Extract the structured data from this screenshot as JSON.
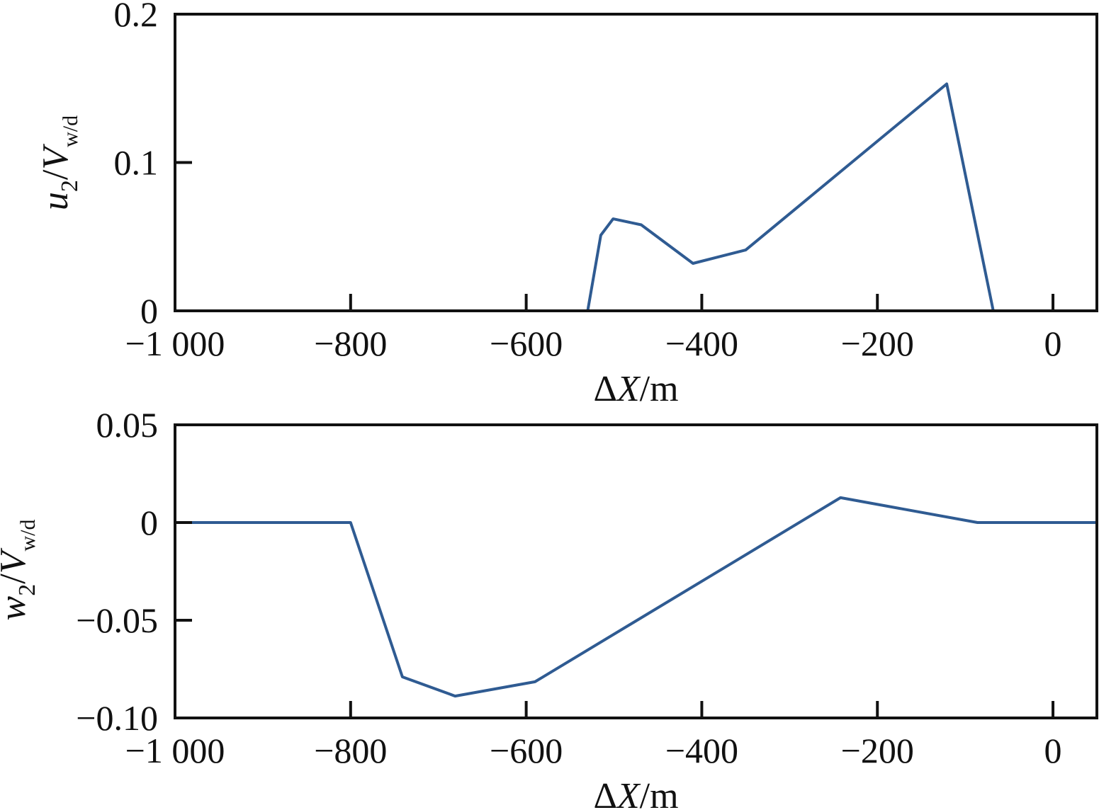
{
  "chart_data": [
    {
      "type": "line",
      "xlabel_prefix": "Δ",
      "xlabel_var": "X",
      "xlabel_unit": "/m",
      "ylabel_var": "u",
      "ylabel_sub": "2",
      "ylabel_slash": "/",
      "ylabel_var2": "V",
      "ylabel_sub2": "w/d",
      "xlim": [
        -1000,
        50
      ],
      "ylim": [
        0,
        0.2
      ],
      "xticks": [
        -1000,
        -800,
        -600,
        -400,
        -200,
        0
      ],
      "xtick_labels": [
        "−1 000",
        "−800",
        "−600",
        "−400",
        "−200",
        "0"
      ],
      "yticks": [
        0,
        0.1,
        0.2
      ],
      "ytick_labels": [
        "0",
        "0.1",
        "0.2"
      ],
      "grid": false,
      "color": "#2f5b92",
      "series": [
        {
          "name": "u2/Vw/d",
          "x": [
            -1000,
            -530,
            -515,
            -501,
            -469,
            -410,
            -350,
            -121,
            -68,
            50
          ],
          "y": [
            0,
            0,
            0.051,
            0.062,
            0.058,
            0.032,
            0.041,
            0.153,
            0,
            0
          ]
        }
      ]
    },
    {
      "type": "line",
      "xlabel_prefix": "Δ",
      "xlabel_var": "X",
      "xlabel_unit": "/m",
      "ylabel_var": "w",
      "ylabel_sub": "2",
      "ylabel_slash": "/",
      "ylabel_var2": "V",
      "ylabel_sub2": "w/d",
      "xlim": [
        -1000,
        50
      ],
      "ylim": [
        -0.1,
        0.05
      ],
      "xticks": [
        -1000,
        -800,
        -600,
        -400,
        -200,
        0
      ],
      "xtick_labels": [
        "−1 000",
        "−800",
        "−600",
        "−400",
        "−200",
        "0"
      ],
      "yticks": [
        -0.1,
        -0.05,
        0,
        0.05
      ],
      "ytick_labels": [
        "−0.10",
        "−0.05",
        "0",
        "0.05"
      ],
      "grid": false,
      "color": "#2f5b92",
      "series": [
        {
          "name": "w2/Vw/d",
          "x": [
            -1000,
            -800,
            -741,
            -681,
            -590,
            -242,
            -86,
            50
          ],
          "y": [
            0,
            0,
            -0.079,
            -0.0888,
            -0.0815,
            0.0127,
            0,
            0
          ]
        }
      ]
    }
  ]
}
